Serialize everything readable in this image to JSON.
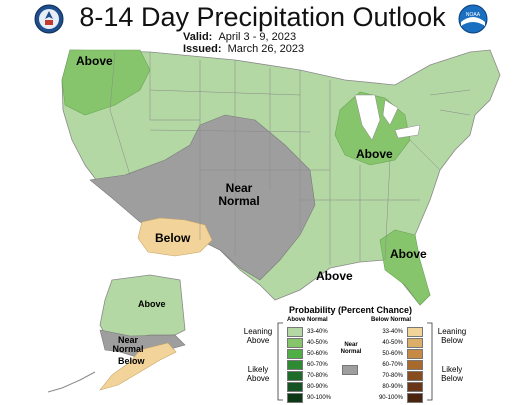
{
  "title": "8-14 Day Precipitation Outlook",
  "valid": {
    "label": "Valid:",
    "value": "April 3 - 9, 2023"
  },
  "issued": {
    "label": "Issued:",
    "value": "March 26, 2023"
  },
  "logos": {
    "left": "doc-seal-icon",
    "right": "noaa-logo-icon",
    "noaa_text": "NOAA"
  },
  "map_labels": {
    "pacific_nw": "Above",
    "great_lakes": "Above",
    "near_normal": "Near Normal",
    "southwest": "Below",
    "southeast": "Above",
    "texas_gulf": "Above",
    "alaska_north": "Above",
    "alaska_near": "Near Normal",
    "alaska_below": "Below"
  },
  "legend": {
    "title": "Probability (Percent Chance)",
    "above_header": "Above Normal",
    "below_header": "Below Normal",
    "near_label": "Near Normal",
    "leaning_above": "Leaning Above",
    "likely_above": "Likely Above",
    "leaning_below": "Leaning Below",
    "likely_below": "Likely Below",
    "above_ranges": [
      "33-40%",
      "40-50%",
      "50-60%",
      "60-70%",
      "70-80%",
      "80-90%",
      "90-100%"
    ],
    "below_ranges": [
      "33-40%",
      "40-50%",
      "50-60%",
      "60-70%",
      "70-80%",
      "80-90%",
      "90-100%"
    ],
    "above_colors": [
      "#b3d8a3",
      "#86c56b",
      "#4fae44",
      "#2e8b34",
      "#1f6b2a",
      "#165222",
      "#0d3816"
    ],
    "below_colors": [
      "#f2d49a",
      "#dcae6a",
      "#c78a45",
      "#a86a2c",
      "#874d1f",
      "#693717",
      "#4a240f"
    ],
    "near_color": "#9e9e9e"
  }
}
